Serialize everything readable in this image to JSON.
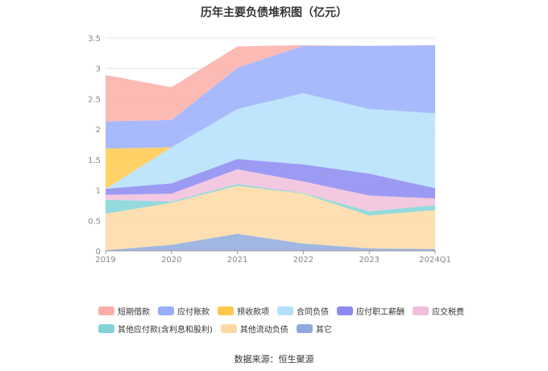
{
  "chart_data": {
    "type": "area",
    "stacked": true,
    "title": "历年主要负债堆积图（亿元）",
    "categories": [
      "2019",
      "2020",
      "2021",
      "2022",
      "2023",
      "2024Q1"
    ],
    "ylim": [
      0,
      3.5
    ],
    "yticks": [
      "0",
      "0.5",
      "1",
      "1.5",
      "2",
      "2.5",
      "3",
      "3.5"
    ],
    "grid": true,
    "legend_position": "bottom",
    "series": [
      {
        "name": "其它",
        "color": "#8faadc",
        "values": [
          0.01,
          0.1,
          0.28,
          0.12,
          0.04,
          0.03
        ]
      },
      {
        "name": "其他流动负债",
        "color": "#fdd9a3",
        "values": [
          0.6,
          0.69,
          0.79,
          0.82,
          0.54,
          0.64
        ]
      },
      {
        "name": "其他应付款(含利息和股利)",
        "color": "#83d3d6",
        "values": [
          0.23,
          0.02,
          0.03,
          0.01,
          0.07,
          0.08
        ]
      },
      {
        "name": "应交税费",
        "color": "#f0bfdc",
        "values": [
          0.08,
          0.13,
          0.24,
          0.19,
          0.26,
          0.11
        ]
      },
      {
        "name": "应付职工薪酬",
        "color": "#8b8af1",
        "values": [
          0.1,
          0.17,
          0.17,
          0.28,
          0.36,
          0.17
        ]
      },
      {
        "name": "合同负债",
        "color": "#b4e0fb",
        "values": [
          0.0,
          0.59,
          0.82,
          1.17,
          1.06,
          1.23
        ]
      },
      {
        "name": "预收款项",
        "color": "#ffc94c",
        "values": [
          0.66,
          0.0,
          0.0,
          0.0,
          0.0,
          0.0
        ]
      },
      {
        "name": "应付账款",
        "color": "#99aefb",
        "values": [
          0.45,
          0.45,
          0.68,
          0.78,
          1.04,
          1.12
        ]
      },
      {
        "name": "短期借款",
        "color": "#fbaea8",
        "values": [
          0.76,
          0.54,
          0.35,
          0.01,
          0.0,
          0.0
        ]
      }
    ]
  },
  "legend": {
    "row1": [
      "短期借款",
      "应付账款",
      "预收款项",
      "合同负债",
      "应付职工薪酬",
      "应交税费"
    ],
    "row2": [
      "其他应付款(含利息和股利)",
      "其他流动负债",
      "其它"
    ]
  },
  "colors": {
    "短期借款": "#fbaea8",
    "应付账款": "#99aefb",
    "预收款项": "#ffc94c",
    "合同负债": "#b4e0fb",
    "应付职工薪酬": "#8b8af1",
    "应交税费": "#f0bfdc",
    "其他应付款(含利息和股利)": "#83d3d6",
    "其他流动负债": "#fdd9a3",
    "其它": "#8faadc"
  },
  "source": "数据来源：恒生聚源"
}
